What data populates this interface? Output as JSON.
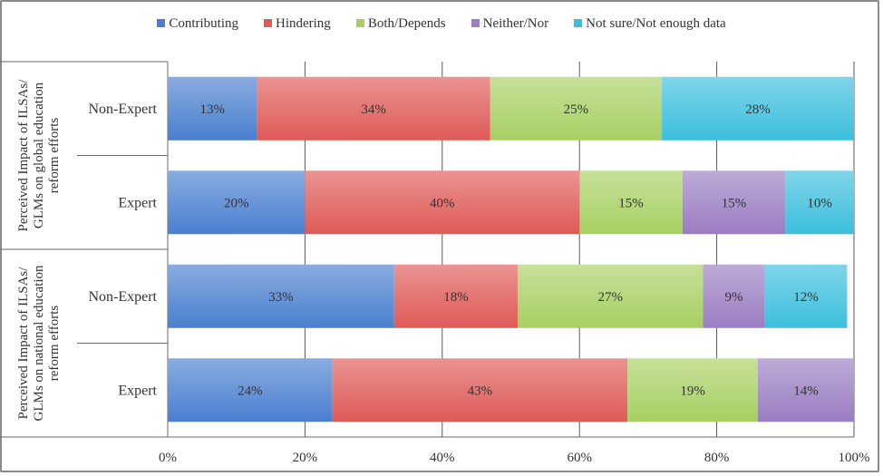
{
  "chart_data": {
    "type": "bar",
    "orientation": "horizontal",
    "stacked": true,
    "groups": [
      {
        "label": "Perceived Impact of ILSAs/ GLMs on global education reform efforts",
        "label_lines": [
          "Perceived Impact of ILSAs/",
          "GLMs on global education",
          "reform efforts"
        ]
      },
      {
        "label": "Perceived Impact of ILSAs/ GLMs on national education reform efforts",
        "label_lines": [
          "Perceived Impact of ILSAs/",
          "GLMs on national education",
          "reform efforts"
        ]
      }
    ],
    "categories": [
      "Non-Expert",
      "Expert",
      "Non-Expert",
      "Expert"
    ],
    "category_group": [
      0,
      0,
      1,
      1
    ],
    "series": [
      {
        "name": "Contributing",
        "color": "#4a7fcf",
        "values": [
          13,
          20,
          33,
          24
        ],
        "labels": [
          "13%",
          "20%",
          "33%",
          "24%"
        ]
      },
      {
        "name": "Hindering",
        "color": "#de5a57",
        "values": [
          34,
          40,
          18,
          43
        ],
        "labels": [
          "34%",
          "40%",
          "18%",
          "43%"
        ]
      },
      {
        "name": "Both/Depends",
        "color": "#a7cf62",
        "values": [
          25,
          15,
          27,
          19
        ],
        "labels": [
          "25%",
          "15%",
          "27%",
          "19%"
        ]
      },
      {
        "name": "Neither/Nor",
        "color": "#9a7dc2",
        "values": [
          0,
          15,
          9,
          14
        ],
        "labels": [
          "",
          "15%",
          "9%",
          "14%"
        ]
      },
      {
        "name": "Not sure/Not enough data",
        "color": "#3cbfdd",
        "values": [
          28,
          10,
          12,
          0
        ],
        "labels": [
          "28%",
          "10%",
          "12%",
          ""
        ]
      }
    ],
    "xlim": [
      0,
      100
    ],
    "x_ticks": [
      0,
      20,
      40,
      60,
      80,
      100
    ],
    "x_tick_labels": [
      "0%",
      "20%",
      "40%",
      "60%",
      "80%",
      "100%"
    ],
    "grid": true,
    "legend": "top"
  }
}
